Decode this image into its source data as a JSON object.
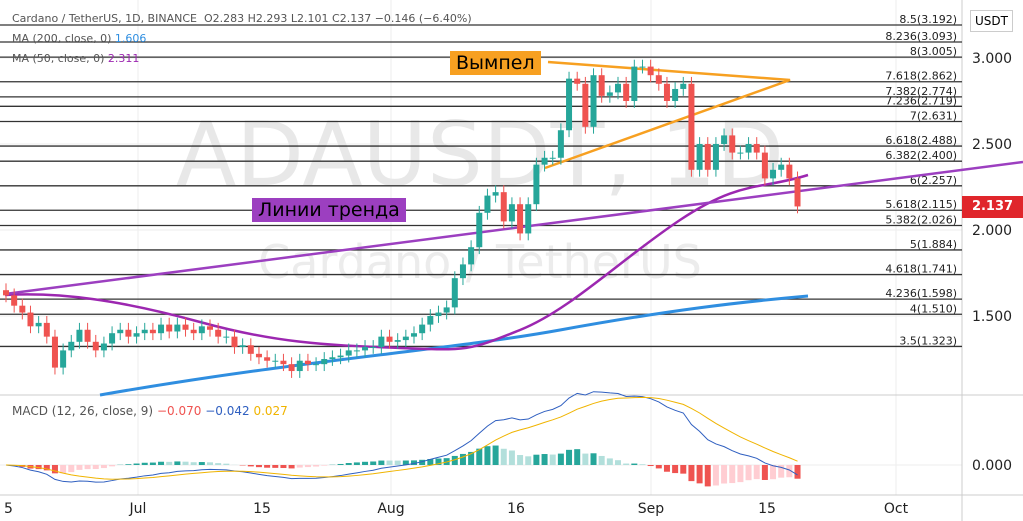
{
  "header": {
    "title": "Cardano / TetherUS, 1D, BINANCE",
    "o": "O2.283",
    "h": "H2.293",
    "l": "L2.101",
    "c": "C2.137",
    "change": "−0.146 (−6.40%)",
    "ma200": "MA (200, close, 0)",
    "ma200_val": "1.606",
    "ma50": "MA (50, close, 0)",
    "ma50_val": "2.311",
    "macd": "MACD (12, 26, close, 9)",
    "macd_hist": "−0.070",
    "macd_line": "−0.042",
    "macd_signal": "0.027"
  },
  "watermark": {
    "symbol": "ADAUSDT, 1D",
    "name": "Cardano / TetherUS"
  },
  "annotations": {
    "pennant": "Вымпел",
    "trendlines": "Линии тренда"
  },
  "axis": {
    "currency": "USDT",
    "current_price": "2.137",
    "price_ticks": [
      "3.000",
      "2.500",
      "2.000",
      "1.500"
    ],
    "macd_tick": "0.000",
    "time_ticks": [
      "5",
      "Jul",
      "15",
      "Aug",
      "16",
      "Sep",
      "15",
      "Oct"
    ]
  },
  "colors": {
    "up": "#26a69a",
    "down": "#ef5350",
    "ma200": "#2f8ee0",
    "ma50": "#9c27b0",
    "trend": "#9c3fc0",
    "pennant": "#f7a021",
    "price_tag": "#e0262b"
  },
  "chart_data": {
    "type": "candlestick",
    "ylim": [
      1.05,
      3.25
    ],
    "start": "Jun 15",
    "fib_levels": [
      {
        "label": "8.5(3.192)",
        "v": 3.192
      },
      {
        "label": "8.236(3.093)",
        "v": 3.093
      },
      {
        "label": "8(3.005)",
        "v": 3.005
      },
      {
        "label": "7.618(2.862)",
        "v": 2.862
      },
      {
        "label": "7.382(2.774)",
        "v": 2.774
      },
      {
        "label": "7.236(2.719)",
        "v": 2.719
      },
      {
        "label": "7(2.631)",
        "v": 2.631
      },
      {
        "label": "6.618(2.488)",
        "v": 2.488
      },
      {
        "label": "6.382(2.400)",
        "v": 2.4
      },
      {
        "label": "6(2.257)",
        "v": 2.257
      },
      {
        "label": "5.618(2.115)",
        "v": 2.115
      },
      {
        "label": "5.382(2.026)",
        "v": 2.026
      },
      {
        "label": "5(1.884)",
        "v": 1.884
      },
      {
        "label": "4.618(1.741)",
        "v": 1.741
      },
      {
        "label": "4.236(1.598)",
        "v": 1.598
      },
      {
        "label": "4(1.510)",
        "v": 1.51
      },
      {
        "label": "3.5(1.323)",
        "v": 1.323
      }
    ],
    "closes": [
      1.62,
      1.56,
      1.52,
      1.44,
      1.46,
      1.38,
      1.2,
      1.3,
      1.35,
      1.42,
      1.35,
      1.3,
      1.34,
      1.4,
      1.42,
      1.38,
      1.4,
      1.42,
      1.4,
      1.45,
      1.41,
      1.45,
      1.42,
      1.4,
      1.44,
      1.42,
      1.38,
      1.38,
      1.32,
      1.33,
      1.28,
      1.26,
      1.24,
      1.24,
      1.22,
      1.18,
      1.24,
      1.22,
      1.22,
      1.25,
      1.26,
      1.27,
      1.3,
      1.3,
      1.32,
      1.32,
      1.38,
      1.35,
      1.36,
      1.38,
      1.4,
      1.45,
      1.5,
      1.52,
      1.55,
      1.72,
      1.8,
      1.9,
      2.1,
      2.2,
      2.22,
      2.05,
      2.15,
      1.98,
      2.15,
      2.38,
      2.42,
      2.42,
      2.58,
      2.88,
      2.85,
      2.6,
      2.9,
      2.78,
      2.8,
      2.85,
      2.75,
      2.95,
      2.95,
      2.9,
      2.85,
      2.75,
      2.82,
      2.85,
      2.35,
      2.5,
      2.35,
      2.5,
      2.55,
      2.45,
      2.45,
      2.5,
      2.45,
      2.3,
      2.35,
      2.38,
      2.3,
      2.137
    ]
  }
}
